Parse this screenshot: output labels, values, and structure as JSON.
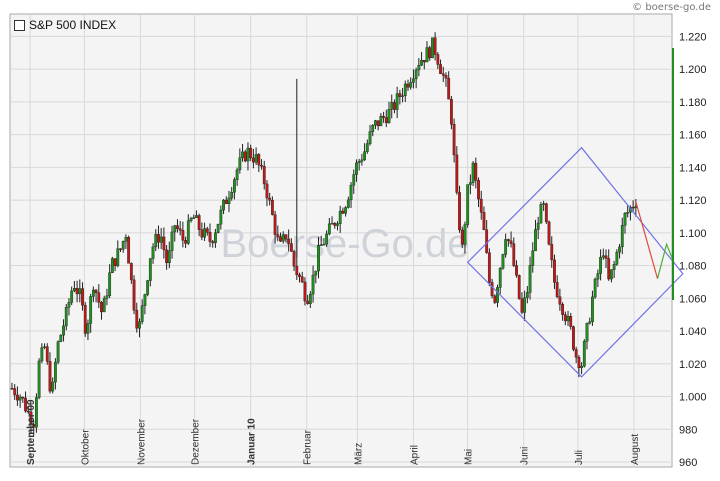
{
  "site_credit": "© boerse-go.de",
  "watermark": "Boerse-Go.de",
  "colors": {
    "up": "#1f8f1f",
    "down": "#c01818",
    "diamond": "#6f74e6",
    "projection_down": "#e04a3a",
    "projection_up": "#4caf3a",
    "grid": "#d8d8d8",
    "plot_bg": "#f4f4f4"
  },
  "chart_data": {
    "type": "candlestick",
    "title": "S&P 500 INDEX",
    "legend_position": "top-left",
    "grid": true,
    "ylim": [
      960,
      1230
    ],
    "y_ticks": [
      960,
      980,
      1000,
      1020,
      1040,
      1060,
      1080,
      1100,
      1120,
      1140,
      1160,
      1180,
      1200,
      1220
    ],
    "y_tick_labels": [
      "960",
      "980",
      "1.000",
      "1.020",
      "1.040",
      "1.060",
      "1.080",
      "1.100",
      "1.120",
      "1.140",
      "1.160",
      "1.180",
      "1.200",
      "1.220"
    ],
    "x_labels": [
      {
        "label": "September 09",
        "day": 10,
        "bold": true
      },
      {
        "label": "Oktober",
        "day": 40,
        "bold": false
      },
      {
        "label": "November",
        "day": 71,
        "bold": false
      },
      {
        "label": "Dezember",
        "day": 101,
        "bold": false
      },
      {
        "label": "Januar 10",
        "day": 132,
        "bold": true
      },
      {
        "label": "Februar",
        "day": 163,
        "bold": false
      },
      {
        "label": "März",
        "day": 191,
        "bold": false
      },
      {
        "label": "April",
        "day": 222,
        "bold": false
      },
      {
        "label": "Mai",
        "day": 252,
        "bold": false
      },
      {
        "label": "Juni",
        "day": 283,
        "bold": false
      },
      {
        "label": "Juli",
        "day": 313,
        "bold": false
      },
      {
        "label": "August",
        "day": 344,
        "bold": false
      }
    ],
    "price_path": [
      [
        0,
        1005
      ],
      [
        5,
        1000
      ],
      [
        9,
        990
      ],
      [
        12,
        985
      ],
      [
        15,
        1020
      ],
      [
        18,
        1030
      ],
      [
        22,
        1000
      ],
      [
        25,
        1030
      ],
      [
        30,
        1050
      ],
      [
        34,
        1070
      ],
      [
        38,
        1060
      ],
      [
        41,
        1040
      ],
      [
        45,
        1070
      ],
      [
        50,
        1050
      ],
      [
        55,
        1080
      ],
      [
        60,
        1090
      ],
      [
        63,
        1100
      ],
      [
        67,
        1060
      ],
      [
        70,
        1040
      ],
      [
        73,
        1060
      ],
      [
        77,
        1090
      ],
      [
        82,
        1100
      ],
      [
        86,
        1080
      ],
      [
        90,
        1105
      ],
      [
        95,
        1095
      ],
      [
        100,
        1110
      ],
      [
        105,
        1100
      ],
      [
        110,
        1095
      ],
      [
        115,
        1110
      ],
      [
        120,
        1125
      ],
      [
        125,
        1140
      ],
      [
        130,
        1150
      ],
      [
        135,
        1145
      ],
      [
        140,
        1130
      ],
      [
        144,
        1110
      ],
      [
        148,
        1090
      ],
      [
        152,
        1100
      ],
      [
        156,
        1080
      ],
      [
        160,
        1070
      ],
      [
        163,
        1060
      ],
      [
        166,
        1070
      ],
      [
        170,
        1090
      ],
      [
        175,
        1100
      ],
      [
        180,
        1110
      ],
      [
        185,
        1120
      ],
      [
        190,
        1140
      ],
      [
        195,
        1150
      ],
      [
        200,
        1165
      ],
      [
        205,
        1170
      ],
      [
        210,
        1175
      ],
      [
        215,
        1185
      ],
      [
        220,
        1195
      ],
      [
        225,
        1205
      ],
      [
        230,
        1210
      ],
      [
        233,
        1215
      ],
      [
        236,
        1205
      ],
      [
        240,
        1190
      ],
      [
        243,
        1170
      ],
      [
        246,
        1120
      ],
      [
        249,
        1090
      ],
      [
        252,
        1125
      ],
      [
        255,
        1140
      ],
      [
        258,
        1120
      ],
      [
        261,
        1100
      ],
      [
        264,
        1070
      ],
      [
        267,
        1060
      ],
      [
        270,
        1080
      ],
      [
        273,
        1100
      ],
      [
        276,
        1090
      ],
      [
        279,
        1070
      ],
      [
        282,
        1050
      ],
      [
        285,
        1065
      ],
      [
        288,
        1090
      ],
      [
        291,
        1110
      ],
      [
        294,
        1115
      ],
      [
        297,
        1090
      ],
      [
        300,
        1070
      ],
      [
        303,
        1060
      ],
      [
        306,
        1050
      ],
      [
        309,
        1040
      ],
      [
        312,
        1025
      ],
      [
        315,
        1020
      ],
      [
        318,
        1040
      ],
      [
        321,
        1060
      ],
      [
        324,
        1075
      ],
      [
        327,
        1090
      ],
      [
        330,
        1070
      ],
      [
        333,
        1080
      ],
      [
        336,
        1095
      ],
      [
        339,
        1110
      ],
      [
        342,
        1115
      ],
      [
        345,
        1120
      ]
    ],
    "highlight_days": [
      158
    ],
    "diamond": [
      [
        252,
        1082
      ],
      [
        315,
        1152
      ],
      [
        371,
        1075
      ],
      [
        315,
        1012
      ]
    ],
    "projection_down": [
      [
        345,
        1119
      ],
      [
        357,
        1072
      ]
    ],
    "projection_up": [
      [
        357,
        1072
      ],
      [
        362,
        1093
      ],
      [
        366,
        1082
      ]
    ]
  }
}
